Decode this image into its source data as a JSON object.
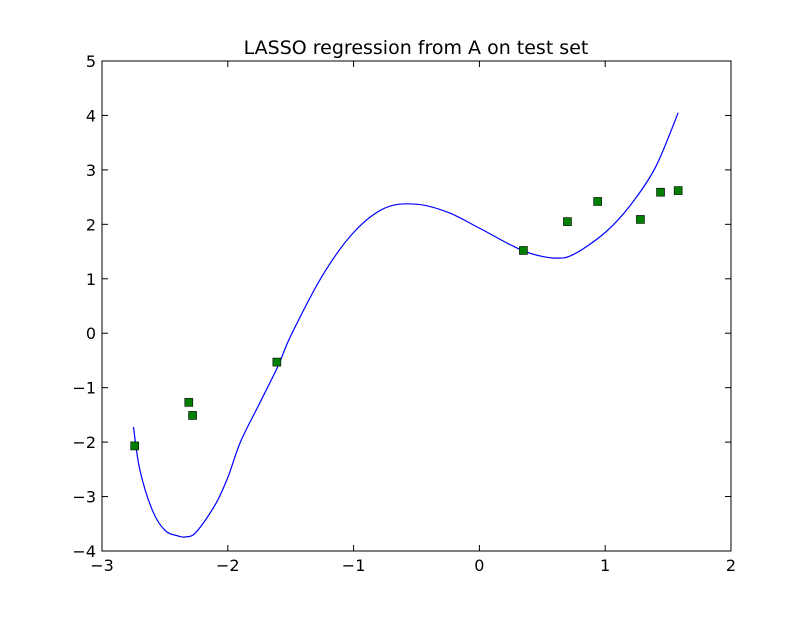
{
  "chart_data": {
    "type": "line",
    "title": "LASSO regression from A on test set",
    "xlabel": "",
    "ylabel": "",
    "xlim": [
      -3,
      2
    ],
    "ylim": [
      -4,
      5
    ],
    "x_ticks": [
      -3,
      -2,
      -1,
      0,
      1,
      2
    ],
    "y_ticks": [
      -4,
      -3,
      -2,
      -1,
      0,
      1,
      2,
      3,
      4,
      5
    ],
    "x_tick_labels": [
      "−3",
      "−2",
      "−1",
      "0",
      "1",
      "2"
    ],
    "y_tick_labels": [
      "−4",
      "−3",
      "−2",
      "−1",
      "0",
      "1",
      "2",
      "3",
      "4",
      "5"
    ],
    "grid": false,
    "legend": "none",
    "series": [
      {
        "kind": "line",
        "color": "#0000ff",
        "x": [
          -2.75,
          -2.7,
          -2.6,
          -2.5,
          -2.4,
          -2.33,
          -2.25,
          -2.1,
          -2.0,
          -1.9,
          -1.75,
          -1.6,
          -1.5,
          -1.25,
          -1.0,
          -0.75,
          -0.5,
          -0.25,
          0.0,
          0.25,
          0.4,
          0.6,
          0.75,
          1.0,
          1.2,
          1.4,
          1.58
        ],
        "y": [
          -1.72,
          -2.5,
          -3.25,
          -3.62,
          -3.72,
          -3.74,
          -3.65,
          -3.15,
          -2.65,
          -2.0,
          -1.3,
          -0.6,
          -0.05,
          1.05,
          1.85,
          2.3,
          2.37,
          2.22,
          1.93,
          1.62,
          1.47,
          1.38,
          1.45,
          1.85,
          2.35,
          3.05,
          4.05
        ]
      },
      {
        "kind": "scatter",
        "marker": "square",
        "color": "#007f00",
        "x": [
          -2.74,
          -2.31,
          -2.28,
          -1.61,
          0.35,
          0.7,
          0.94,
          1.28,
          1.44,
          1.58
        ],
        "y": [
          -2.07,
          -1.27,
          -1.51,
          -0.53,
          1.52,
          2.05,
          2.42,
          2.09,
          2.59,
          2.62
        ]
      }
    ]
  }
}
